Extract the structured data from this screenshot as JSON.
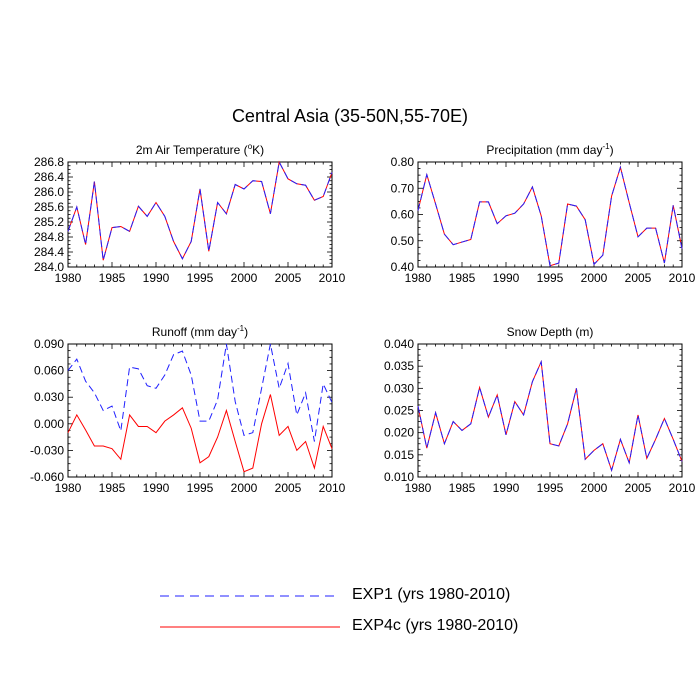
{
  "figure": {
    "title": "Central Asia (35-50N,55-70E)"
  },
  "legend": [
    {
      "label": "EXP1 (yrs 1980-2010)",
      "color": "#2020ff",
      "style": "dashed"
    },
    {
      "label": "EXP4c (yrs 1980-2010)",
      "color": "#ff0000",
      "style": "solid"
    }
  ],
  "chart_data": [
    {
      "type": "line",
      "title": "2m Air Temperature (°K)",
      "title_parts": [
        "2m Air Temperature (",
        "o",
        "K)"
      ],
      "x": [
        1980,
        1981,
        1982,
        1983,
        1984,
        1985,
        1986,
        1987,
        1988,
        1989,
        1990,
        1991,
        1992,
        1993,
        1994,
        1995,
        1996,
        1997,
        1998,
        1999,
        2000,
        2001,
        2002,
        2003,
        2004,
        2005,
        2006,
        2007,
        2008,
        2009,
        2010
      ],
      "xlim": [
        1980,
        2010
      ],
      "xticks": [
        "1980",
        "1985",
        "1990",
        "1995",
        "2000",
        "2005",
        "2010"
      ],
      "ylim": [
        284.0,
        286.8
      ],
      "yticks": [
        "284.0",
        "284.4",
        "284.8",
        "285.2",
        "285.6",
        "286.0",
        "286.4",
        "286.8"
      ],
      "series": [
        {
          "name": "EXP1 (yrs 1980-2010)",
          "values": [
            284.95,
            285.6,
            284.6,
            286.28,
            284.18,
            285.05,
            285.08,
            284.95,
            285.62,
            285.35,
            285.72,
            285.35,
            284.68,
            284.22,
            284.68,
            286.08,
            284.42,
            285.72,
            285.42,
            286.2,
            286.08,
            286.3,
            286.28,
            285.42,
            286.8,
            286.35,
            286.22,
            286.18,
            285.78,
            285.88,
            286.52
          ]
        },
        {
          "name": "EXP4c (yrs 1980-2010)",
          "values": [
            284.95,
            285.6,
            284.6,
            286.28,
            284.18,
            285.05,
            285.08,
            284.95,
            285.62,
            285.35,
            285.72,
            285.35,
            284.68,
            284.22,
            284.68,
            286.08,
            284.42,
            285.72,
            285.42,
            286.2,
            286.08,
            286.3,
            286.28,
            285.42,
            286.8,
            286.35,
            286.22,
            286.18,
            285.78,
            285.88,
            286.52
          ]
        }
      ]
    },
    {
      "type": "line",
      "title": "Precipitation (mm day-1)",
      "title_parts": [
        "Precipitation (mm day",
        "-1",
        ")"
      ],
      "x": [
        1980,
        1981,
        1982,
        1983,
        1984,
        1985,
        1986,
        1987,
        1988,
        1989,
        1990,
        1991,
        1992,
        1993,
        1994,
        1995,
        1996,
        1997,
        1998,
        1999,
        2000,
        2001,
        2002,
        2003,
        2004,
        2005,
        2006,
        2007,
        2008,
        2009,
        2010
      ],
      "xlim": [
        1980,
        2010
      ],
      "xticks": [
        "1980",
        "1985",
        "1990",
        "1995",
        "2000",
        "2005",
        "2010"
      ],
      "ylim": [
        0.4,
        0.8
      ],
      "yticks": [
        "0.40",
        "0.50",
        "0.60",
        "0.70",
        "0.80"
      ],
      "series": [
        {
          "name": "EXP1 (yrs 1980-2010)",
          "values": [
            0.615,
            0.752,
            0.64,
            0.525,
            0.485,
            0.495,
            0.505,
            0.648,
            0.648,
            0.565,
            0.595,
            0.605,
            0.64,
            0.705,
            0.595,
            0.405,
            0.415,
            0.64,
            0.632,
            0.58,
            0.41,
            0.445,
            0.67,
            0.78,
            0.645,
            0.515,
            0.548,
            0.548,
            0.415,
            0.635,
            0.47
          ]
        },
        {
          "name": "EXP4c (yrs 1980-2010)",
          "values": [
            0.615,
            0.752,
            0.64,
            0.525,
            0.485,
            0.495,
            0.505,
            0.648,
            0.648,
            0.565,
            0.595,
            0.605,
            0.64,
            0.705,
            0.595,
            0.405,
            0.415,
            0.64,
            0.632,
            0.58,
            0.41,
            0.445,
            0.67,
            0.78,
            0.645,
            0.515,
            0.548,
            0.548,
            0.415,
            0.635,
            0.47
          ]
        }
      ]
    },
    {
      "type": "line",
      "title": "Runoff (mm day-1)",
      "title_parts": [
        "Runoff (mm day",
        "-1",
        ")"
      ],
      "x": [
        1980,
        1981,
        1982,
        1983,
        1984,
        1985,
        1986,
        1987,
        1988,
        1989,
        1990,
        1991,
        1992,
        1993,
        1994,
        1995,
        1996,
        1997,
        1998,
        1999,
        2000,
        2001,
        2002,
        2003,
        2004,
        2005,
        2006,
        2007,
        2008,
        2009,
        2010
      ],
      "xlim": [
        1980,
        2010
      ],
      "xticks": [
        "1980",
        "1985",
        "1990",
        "1995",
        "2000",
        "2005",
        "2010"
      ],
      "ylim": [
        -0.06,
        0.09
      ],
      "yticks": [
        "-0.060",
        "-0.030",
        "0.000",
        "0.030",
        "0.060",
        "0.090"
      ],
      "series": [
        {
          "name": "EXP1 (yrs 1980-2010)",
          "values": [
            0.06,
            0.073,
            0.048,
            0.035,
            0.015,
            0.02,
            -0.008,
            0.064,
            0.062,
            0.043,
            0.04,
            0.055,
            0.078,
            0.082,
            0.055,
            0.003,
            0.003,
            0.027,
            0.09,
            0.025,
            -0.013,
            -0.01,
            0.04,
            0.09,
            0.04,
            0.068,
            0.01,
            0.035,
            -0.02,
            0.045,
            0.024
          ]
        },
        {
          "name": "EXP4c (yrs 1980-2010)",
          "values": [
            -0.01,
            0.01,
            -0.007,
            -0.025,
            -0.025,
            -0.028,
            -0.04,
            0.01,
            -0.003,
            -0.003,
            -0.01,
            0.003,
            0.01,
            0.018,
            -0.005,
            -0.044,
            -0.037,
            -0.015,
            0.015,
            -0.02,
            -0.054,
            -0.05,
            0.0,
            0.033,
            -0.013,
            -0.003,
            -0.03,
            -0.02,
            -0.05,
            -0.003,
            -0.028
          ]
        }
      ]
    },
    {
      "type": "line",
      "title": "Snow Depth (m)",
      "title_parts": [
        "Snow Depth (m)",
        "",
        ""
      ],
      "x": [
        1980,
        1981,
        1982,
        1983,
        1984,
        1985,
        1986,
        1987,
        1988,
        1989,
        1990,
        1991,
        1992,
        1993,
        1994,
        1995,
        1996,
        1997,
        1998,
        1999,
        2000,
        2001,
        2002,
        2003,
        2004,
        2005,
        2006,
        2007,
        2008,
        2009,
        2010
      ],
      "xlim": [
        1980,
        2010
      ],
      "xticks": [
        "1980",
        "1985",
        "1990",
        "1995",
        "2000",
        "2005",
        "2010"
      ],
      "ylim": [
        0.01,
        0.04
      ],
      "yticks": [
        "0.010",
        "0.015",
        "0.020",
        "0.025",
        "0.030",
        "0.035",
        "0.040"
      ],
      "series": [
        {
          "name": "EXP1 (yrs 1980-2010)",
          "values": [
            0.026,
            0.0165,
            0.0245,
            0.0175,
            0.0225,
            0.0205,
            0.022,
            0.0302,
            0.0235,
            0.0285,
            0.0195,
            0.027,
            0.024,
            0.0315,
            0.036,
            0.0175,
            0.017,
            0.022,
            0.03,
            0.014,
            0.016,
            0.0175,
            0.0115,
            0.0185,
            0.0132,
            0.024,
            0.0142,
            0.0185,
            0.0232,
            0.0185,
            0.0135
          ]
        },
        {
          "name": "EXP4c (yrs 1980-2010)",
          "values": [
            0.026,
            0.0165,
            0.0245,
            0.0175,
            0.0225,
            0.0205,
            0.022,
            0.0302,
            0.0235,
            0.0285,
            0.0195,
            0.027,
            0.024,
            0.0315,
            0.036,
            0.0175,
            0.017,
            0.022,
            0.03,
            0.014,
            0.016,
            0.0175,
            0.0115,
            0.0185,
            0.0132,
            0.024,
            0.0142,
            0.0185,
            0.0232,
            0.0185,
            0.0135
          ]
        }
      ]
    }
  ]
}
